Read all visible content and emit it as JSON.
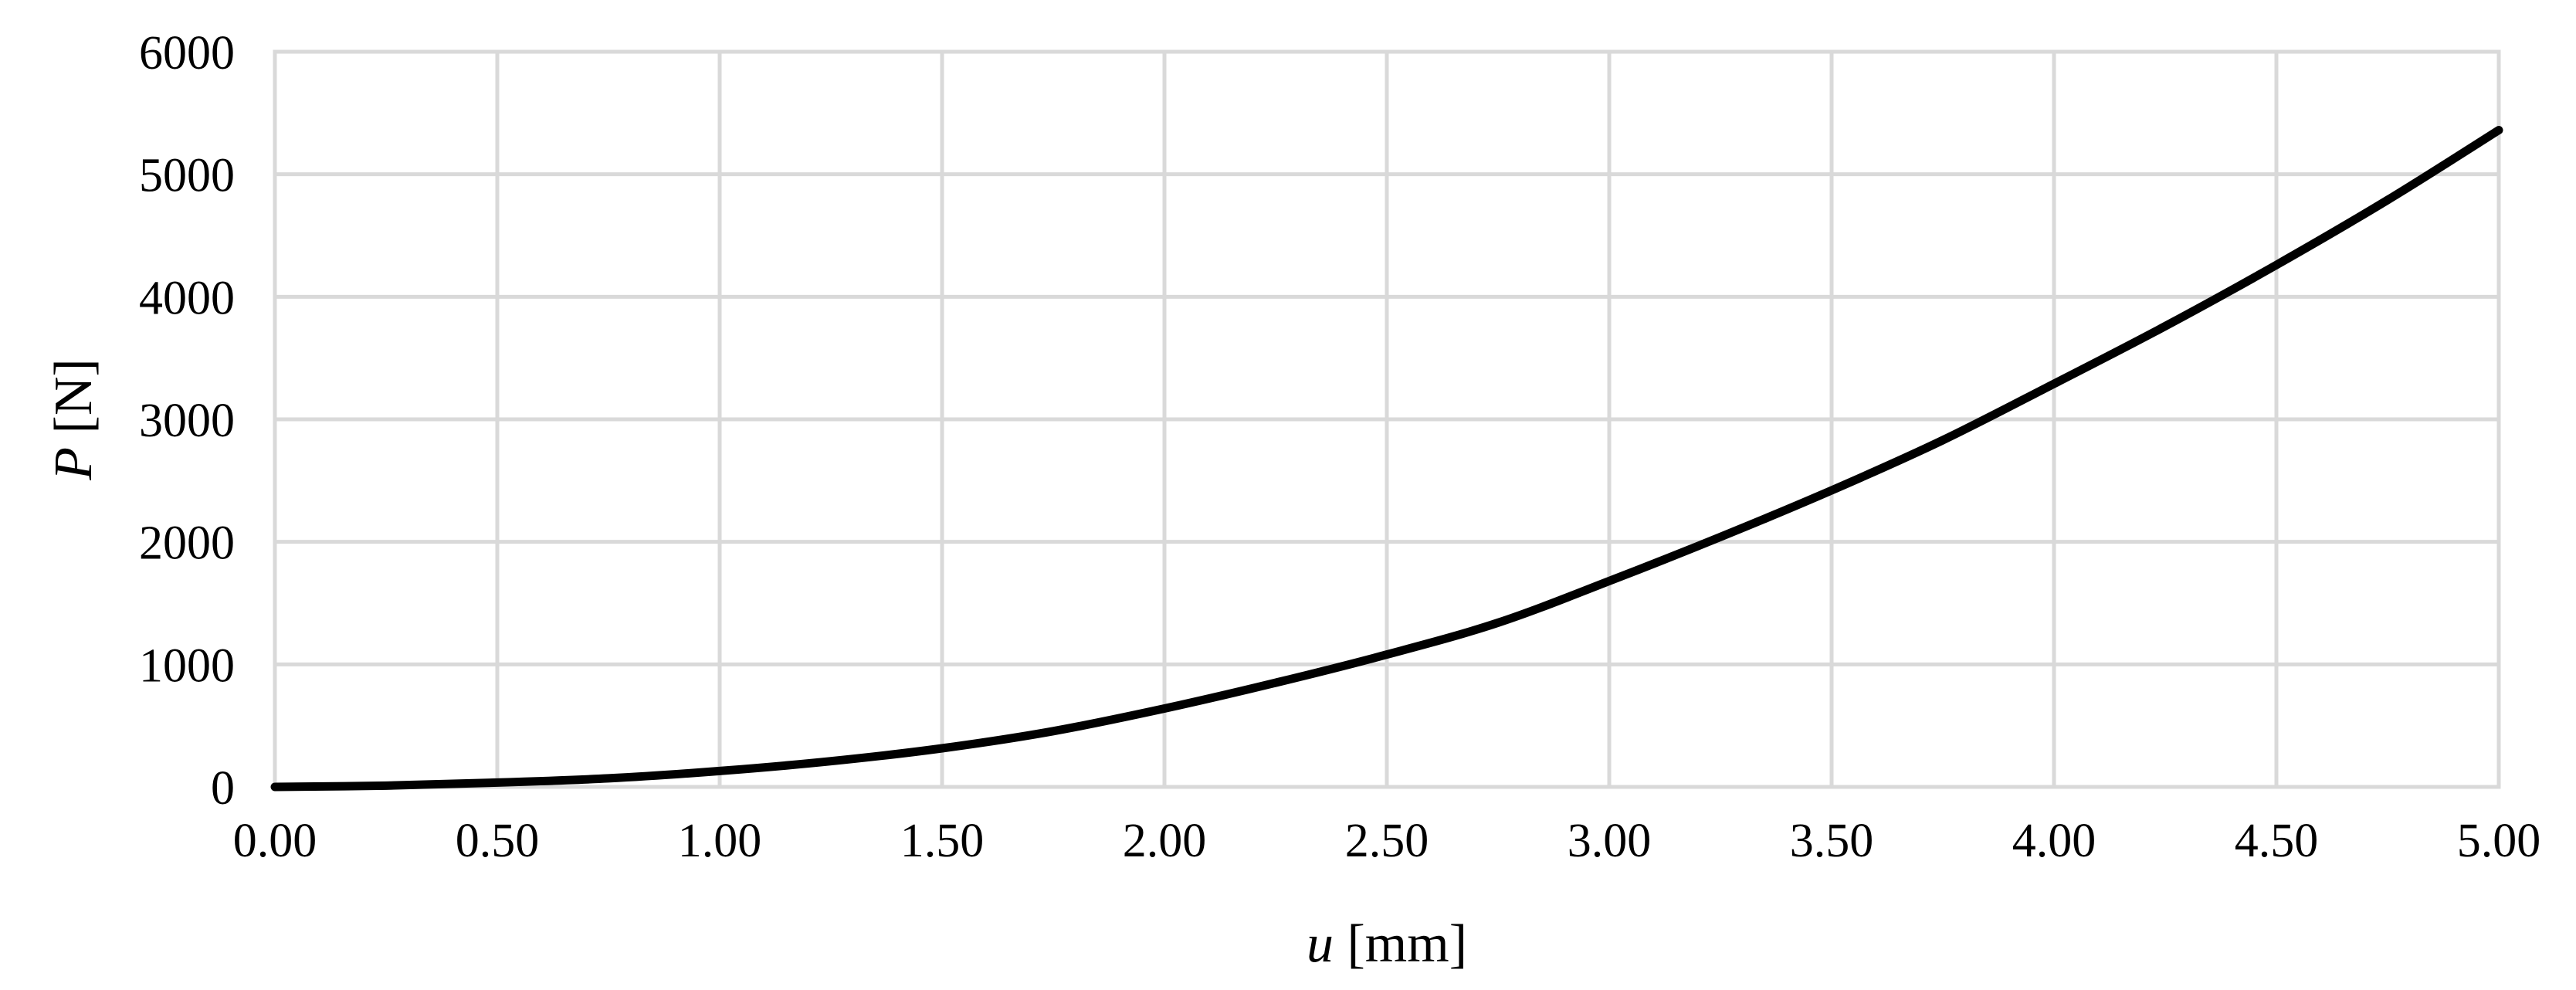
{
  "chart_data": {
    "type": "line",
    "xlabel": {
      "var": "u",
      "unit": " [mm]"
    },
    "ylabel": {
      "var": "P",
      "unit": " [N]"
    },
    "xlim": [
      0,
      5
    ],
    "ylim": [
      0,
      6000
    ],
    "x_ticks": [
      "0.00",
      "0.50",
      "1.00",
      "1.50",
      "2.00",
      "2.50",
      "3.00",
      "3.50",
      "4.00",
      "4.50",
      "5.00"
    ],
    "y_ticks": [
      "0",
      "1000",
      "2000",
      "3000",
      "4000",
      "5000",
      "6000"
    ],
    "grid": true,
    "legend": "none",
    "series": [
      {
        "color": "#000000",
        "x": [
          0,
          0.25,
          0.5,
          0.75,
          1.0,
          1.25,
          1.5,
          1.75,
          2.0,
          2.25,
          2.5,
          2.75,
          3.0,
          3.25,
          3.5,
          3.75,
          4.0,
          4.25,
          4.5,
          4.75,
          5.0
        ],
        "y": [
          0,
          10,
          35,
          70,
          130,
          210,
          315,
          455,
          640,
          850,
          1080,
          1340,
          1680,
          2040,
          2420,
          2830,
          3290,
          3760,
          4260,
          4790,
          5360
        ]
      }
    ]
  }
}
